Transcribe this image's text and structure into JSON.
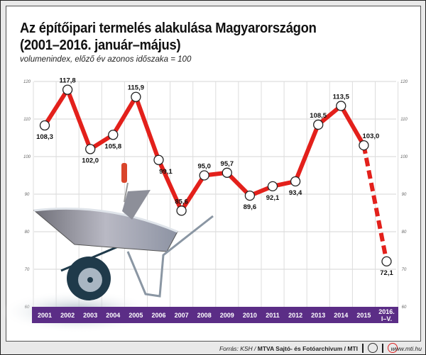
{
  "header": {
    "title_line1": "Az építőipari termelés alakulása Magyarországon",
    "title_line2": "(2001–2016. január–május)",
    "subtitle": "volumenindex, előző év azonos időszaka = 100"
  },
  "chart_data": {
    "type": "line",
    "title": "Az építőipari termelés alakulása Magyarországon (2001–2016. január–május)",
    "ylabel": "volumenindex, előző év azonos időszaka = 100",
    "categories": [
      "2001",
      "2002",
      "2003",
      "2004",
      "2005",
      "2006",
      "2007",
      "2008",
      "2009",
      "2010",
      "2011",
      "2012",
      "2013",
      "2014",
      "2015",
      "2016. I–V."
    ],
    "values": [
      108.3,
      117.8,
      102.0,
      105.8,
      115.9,
      99.1,
      85.6,
      95.0,
      95.7,
      89.6,
      92.1,
      93.4,
      108.5,
      113.5,
      103.0,
      72.1
    ],
    "value_labels": [
      "108,3",
      "117,8",
      "102,0",
      "105,8",
      "115,9",
      "99,1",
      "85,6",
      "95,0",
      "95,7",
      "89,6",
      "92,1",
      "93,4",
      "108,5",
      "113,5",
      "103,0",
      "72,1"
    ],
    "ylim": [
      60,
      120
    ],
    "yticks": [
      60,
      70,
      80,
      90,
      100,
      110,
      120
    ],
    "grid": true,
    "last_segment_dashed": true,
    "line_color": "#e3201b",
    "axis_band_color": "#5b2d86"
  },
  "footer": {
    "source_prefix": "Forrás: KSH / ",
    "source_bold": "MTVA Sajtó- és Fotóarchívum / MTI",
    "url": "www.mti.hu"
  }
}
